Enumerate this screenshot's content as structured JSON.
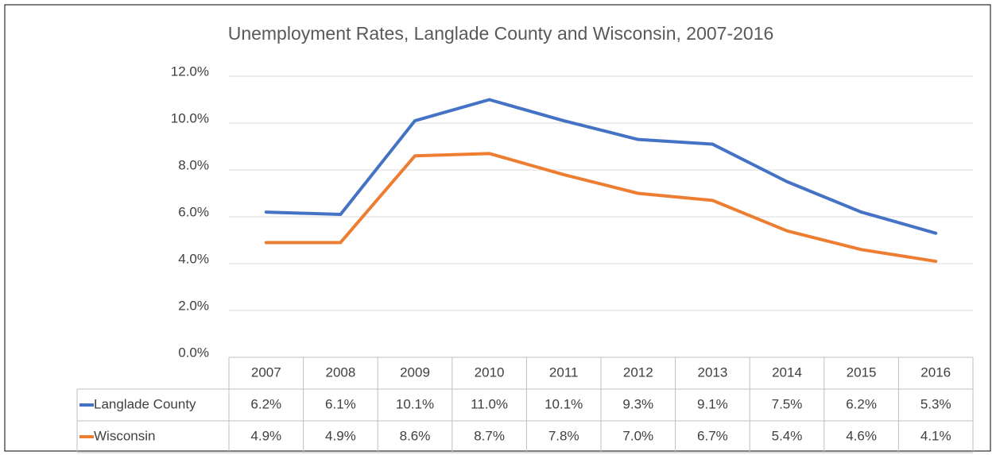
{
  "chart_data": {
    "type": "line",
    "title": "Unemployment Rates, Langlade County and Wisconsin, 2007-2016",
    "categories": [
      "2007",
      "2008",
      "2009",
      "2010",
      "2011",
      "2012",
      "2013",
      "2014",
      "2015",
      "2016"
    ],
    "series": [
      {
        "name": "Langlade County",
        "color": "#4472c4",
        "values": [
          6.2,
          6.1,
          10.1,
          11.0,
          10.1,
          9.3,
          9.1,
          7.5,
          6.2,
          5.3
        ],
        "value_labels": [
          "6.2%",
          "6.1%",
          "10.1%",
          "11.0%",
          "10.1%",
          "9.3%",
          "9.1%",
          "7.5%",
          "6.2%",
          "5.3%"
        ]
      },
      {
        "name": "Wisconsin",
        "color": "#ed7d31",
        "values": [
          4.9,
          4.9,
          8.6,
          8.7,
          7.8,
          7.0,
          6.7,
          5.4,
          4.6,
          4.1
        ],
        "value_labels": [
          "4.9%",
          "4.9%",
          "8.6%",
          "8.7%",
          "7.8%",
          "7.0%",
          "6.7%",
          "5.4%",
          "4.6%",
          "4.1%"
        ]
      }
    ],
    "ylim": [
      0,
      12
    ],
    "yticks": [
      {
        "value": 0,
        "label": "0.0%"
      },
      {
        "value": 2,
        "label": "2.0%"
      },
      {
        "value": 4,
        "label": "4.0%"
      },
      {
        "value": 6,
        "label": "6.0%"
      },
      {
        "value": 8,
        "label": "8.0%"
      },
      {
        "value": 10,
        "label": "10.0%"
      },
      {
        "value": 12,
        "label": "12.0%"
      }
    ],
    "grid": true
  }
}
